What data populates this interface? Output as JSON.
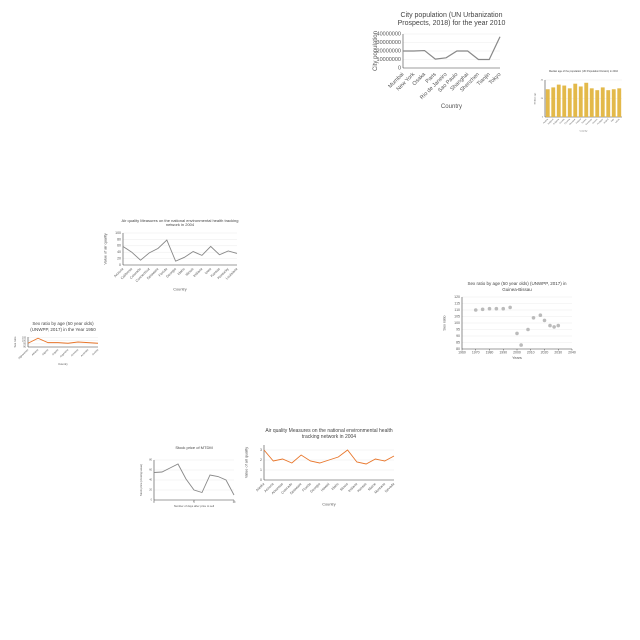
{
  "chart_data": [
    {
      "type": "line",
      "title": "City population (UN Urbanization Prospects, 2018) for the year 2010",
      "x_label": "Country",
      "y_label": "City population",
      "categories": [
        "Mumbai",
        "New York",
        "Osaka",
        "Paris",
        "Rio de Janeiro",
        "Sao Paulo",
        "Shanghai",
        "Shenzhen",
        "Tianjin",
        "Tokyo"
      ],
      "series": [
        {
          "name": "City population",
          "color": "#888888",
          "values": [
            20000000,
            20000000,
            20500000,
            10500000,
            12000000,
            20000000,
            20000000,
            10000000,
            10000000,
            36800000
          ]
        }
      ],
      "ylim": [
        0,
        40000000
      ],
      "yticks": [
        0,
        10000000,
        20000000,
        30000000,
        40000000
      ]
    },
    {
      "type": "bar",
      "title": "Median age of the population (UN Population Division) in 2010",
      "x_label": "Country",
      "y_label": "Median age",
      "categories": [
        "Austria",
        "Belgium",
        "Bulgaria",
        "Croatia",
        "Czechia",
        "Denmark",
        "Finland",
        "France",
        "Germany",
        "Greece",
        "Hungary",
        "Ireland",
        "Italy",
        "Latvia"
      ],
      "series": [
        {
          "name": "Median age",
          "color": "#e3b94a",
          "values": [
            30,
            32,
            35,
            34,
            31,
            36,
            33,
            37,
            31,
            29,
            32,
            29,
            30,
            31
          ]
        }
      ],
      "ylim": [
        0,
        40
      ],
      "yticks": [
        0,
        20,
        40
      ]
    },
    {
      "type": "line",
      "title": "Air quality Measures on the national environmental health tracking network in 2004",
      "x_label": "Country",
      "y_label": "Value of air quality",
      "categories": [
        "Arizona",
        "California",
        "Colorado",
        "Connecticut",
        "Delaware",
        "Florida",
        "Georgia",
        "Idaho",
        "Illinois",
        "Indiana",
        "Iowa",
        "Kansas",
        "Kentucky",
        "Louisiana"
      ],
      "series": [
        {
          "name": "Value of air quality",
          "color": "#888888",
          "values": [
            58,
            40,
            15,
            38,
            52,
            78,
            12,
            24,
            42,
            30,
            58,
            32,
            44,
            36
          ]
        }
      ],
      "ylim": [
        0,
        100
      ],
      "yticks": [
        0,
        20,
        40,
        60,
        80,
        100
      ]
    },
    {
      "type": "line",
      "title": "Sex ratio by age (50 year olds) (UNWPP, 2017) in the Year 1950",
      "x_label": "Country",
      "y_label": "Sex ratio",
      "categories": [
        "Afghanistan",
        "Albania",
        "Algeria",
        "Angola",
        "Argentina",
        "Armenia",
        "Australia",
        "Austria"
      ],
      "series": [
        {
          "name": "Sex ratio",
          "color": "#e8762b",
          "values": [
            96,
            104,
            97,
            97,
            96,
            98,
            97,
            96
          ]
        }
      ],
      "ylim": [
        90,
        106
      ],
      "yticks": [
        90,
        95,
        100,
        105
      ]
    },
    {
      "type": "scatter",
      "title": "Sex ratio by age (50 year olds) (UNWPP, 2017) in Guinea-Bissau",
      "x_label": "Years",
      "y_label": "Sex ratio",
      "x": [
        1970,
        1975,
        1980,
        1985,
        1990,
        1995,
        2000,
        2003,
        2008,
        2012,
        2017,
        2020,
        2024,
        2027,
        2030
      ],
      "series": [
        {
          "name": "Sex ratio",
          "color": "#bbbbbb",
          "values": [
            110,
            110.5,
            111,
            111,
            111,
            112,
            92,
            83,
            95,
            104,
            106,
            102,
            98,
            97,
            98
          ]
        }
      ],
      "xlim": [
        1960,
        2040
      ],
      "xticks": [
        1960,
        1970,
        1980,
        1990,
        2000,
        2010,
        2020,
        2030,
        2040
      ],
      "ylim": [
        80,
        120
      ],
      "yticks": [
        80,
        85,
        90,
        95,
        100,
        105,
        110,
        115,
        120
      ]
    },
    {
      "type": "line",
      "title": "Stock price of MTDM",
      "x_label": "Number of days after price to sell",
      "y_label": "Stock price (closing value)",
      "x": [
        0,
        1,
        2,
        3,
        4,
        5,
        6,
        7,
        8,
        9,
        10
      ],
      "series": [
        {
          "name": "Stock price",
          "color": "#888888",
          "values": [
            55,
            56,
            64,
            72,
            42,
            20,
            15,
            50,
            47,
            40,
            10
          ]
        }
      ],
      "xlim": [
        0,
        10
      ],
      "xticks": [
        0,
        5,
        10
      ],
      "ylim": [
        0,
        80
      ],
      "yticks": [
        0,
        20,
        40,
        60,
        80
      ]
    },
    {
      "type": "line",
      "title": "Air quality Measures on the national environmental health tracking network in 2004",
      "x_label": "Country",
      "y_label": "Value of air quality",
      "categories": [
        "Alaska",
        "Arizona",
        "Arkansas",
        "Colorado",
        "Delaware",
        "Florida",
        "Georgia",
        "Hawaii",
        "Idaho",
        "Illinois",
        "Indiana",
        "Kansas",
        "Maine",
        "Montana",
        "Nevada"
      ],
      "series": [
        {
          "name": "Value of air quality",
          "color": "#e8762b",
          "values": [
            3.0,
            1.9,
            2.1,
            1.7,
            2.5,
            1.9,
            1.7,
            2.0,
            2.3,
            3.0,
            1.8,
            1.6,
            2.1,
            1.9,
            2.4
          ]
        }
      ],
      "ylim": [
        0,
        3.5
      ],
      "yticks": [
        0,
        1,
        2,
        3
      ]
    }
  ]
}
